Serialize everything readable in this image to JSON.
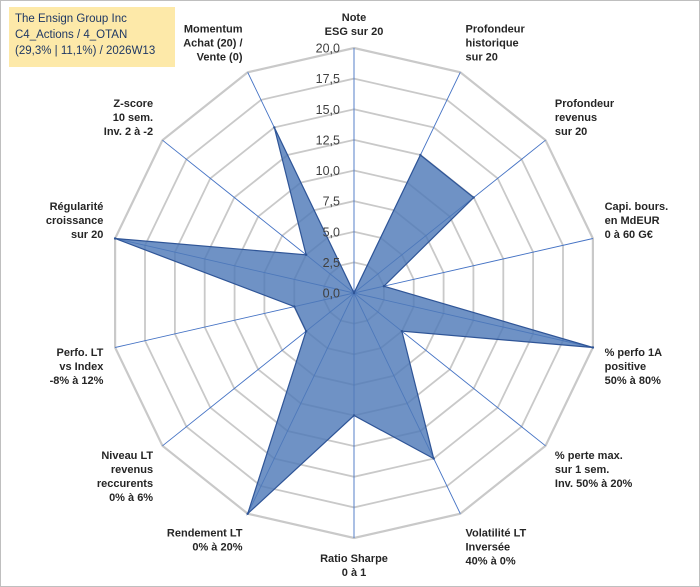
{
  "header": {
    "line1": "The Ensign Group Inc",
    "line2": "C4_Actions / 4_OTAN",
    "line3": "(29,3% | 11,1%) / 2026W13"
  },
  "colors": {
    "fill": "#4f7ab8",
    "stroke": "#2f5597",
    "grid": "#c9c9c9",
    "spoke": "#4472c4",
    "title_bg": "#fde9a9"
  },
  "chart_data": {
    "type": "radar",
    "title": "",
    "range": [
      0,
      20
    ],
    "ticks": [
      "0,0",
      "2,5",
      "5,0",
      "7,5",
      "10,0",
      "12,5",
      "15,0",
      "17,5",
      "20,0"
    ],
    "grid": true,
    "categories": [
      [
        "Note",
        "ESG sur 20"
      ],
      [
        "Profondeur",
        "historique",
        "sur 20"
      ],
      [
        "Profondeur",
        "revenus",
        "sur 20"
      ],
      [
        "Capi. bours.",
        "en MdEUR",
        "0 à 60 G€"
      ],
      [
        "% perfo 1A",
        "positive",
        "50% à 80%"
      ],
      [
        "% perte max.",
        "sur 1 sem.",
        "Inv. 50% à 20%"
      ],
      [
        "Volatilité LT",
        "Inversée",
        "40% à 0%"
      ],
      [
        "Ratio Sharpe",
        "0 à 1"
      ],
      [
        "Rendement LT",
        "0% à 20%"
      ],
      [
        "Niveau LT",
        "revenus",
        "reccurents",
        "0% à 6%"
      ],
      [
        "Perfo. LT",
        "vs Index",
        "-8% à 12%"
      ],
      [
        "Régularité",
        "croissance",
        "sur 20"
      ],
      [
        "Z-score",
        "10 sem.",
        "Inv. 2 à -2"
      ],
      [
        "Momentum",
        "Achat (20) /",
        "Vente (0)"
      ]
    ],
    "series": [
      {
        "name": "The Ensign Group Inc",
        "values": [
          0,
          12.5,
          12.5,
          2.5,
          20,
          5,
          15,
          10,
          20,
          5,
          5,
          20,
          5,
          15
        ]
      }
    ]
  }
}
